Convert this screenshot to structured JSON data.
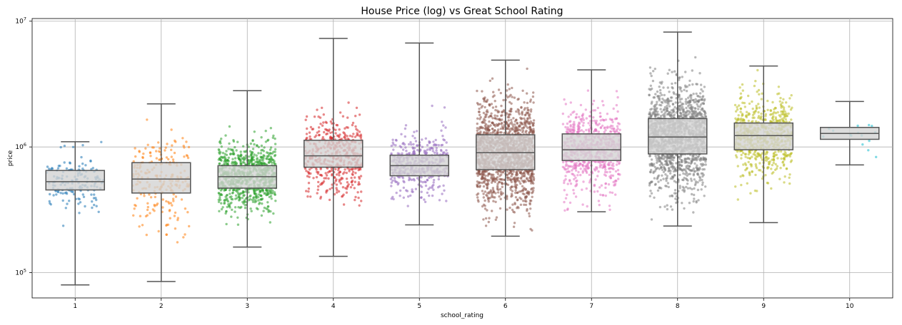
{
  "chart_data": {
    "type": "box",
    "title": "House Price (log) vs Great School Rating",
    "xlabel": "school_rating",
    "ylabel": "price",
    "yscale": "log",
    "ylim": [
      63000,
      10500000
    ],
    "grid": true,
    "categories": [
      "1",
      "2",
      "3",
      "4",
      "5",
      "6",
      "7",
      "8",
      "9",
      "10"
    ],
    "colors": [
      "#1f77b4",
      "#ff7f0e",
      "#2ca02c",
      "#d62728",
      "#9467bd",
      "#8c564b",
      "#e377c2",
      "#7f7f7f",
      "#bcbd22",
      "#17becf"
    ],
    "yticks": [
      {
        "value": 100000,
        "base": "10",
        "exp": "5"
      },
      {
        "value": 1000000,
        "base": "10",
        "exp": "6"
      },
      {
        "value": 10000000,
        "base": "10",
        "exp": "7"
      }
    ],
    "boxes": [
      {
        "category": "1",
        "whisker_low": 80000,
        "q1": 455000,
        "median": 530000,
        "q3": 650000,
        "whisker_high": 1100000,
        "n_points": 160
      },
      {
        "category": "2",
        "whisker_low": 85000,
        "q1": 430000,
        "median": 555000,
        "q3": 750000,
        "whisker_high": 2200000,
        "n_points": 230
      },
      {
        "category": "3",
        "whisker_low": 160000,
        "q1": 470000,
        "median": 580000,
        "q3": 710000,
        "whisker_high": 2800000,
        "n_points": 900
      },
      {
        "category": "4",
        "whisker_low": 135000,
        "q1": 690000,
        "median": 850000,
        "q3": 1130000,
        "whisker_high": 7300000,
        "n_points": 500
      },
      {
        "category": "5",
        "whisker_low": 240000,
        "q1": 590000,
        "median": 710000,
        "q3": 860000,
        "whisker_high": 6700000,
        "n_points": 450
      },
      {
        "category": "6",
        "whisker_low": 195000,
        "q1": 660000,
        "median": 900000,
        "q3": 1250000,
        "whisker_high": 4900000,
        "n_points": 1500
      },
      {
        "category": "7",
        "whisker_low": 305000,
        "q1": 780000,
        "median": 950000,
        "q3": 1270000,
        "whisker_high": 4100000,
        "n_points": 700
      },
      {
        "category": "8",
        "whisker_low": 235000,
        "q1": 880000,
        "median": 1200000,
        "q3": 1680000,
        "whisker_high": 8200000,
        "n_points": 1500
      },
      {
        "category": "9",
        "whisker_low": 250000,
        "q1": 950000,
        "median": 1230000,
        "q3": 1550000,
        "whisker_high": 4400000,
        "n_points": 700
      },
      {
        "category": "10",
        "whisker_low": 720000,
        "q1": 1150000,
        "median": 1280000,
        "q3": 1430000,
        "whisker_high": 2300000,
        "n_points": 15
      }
    ]
  }
}
